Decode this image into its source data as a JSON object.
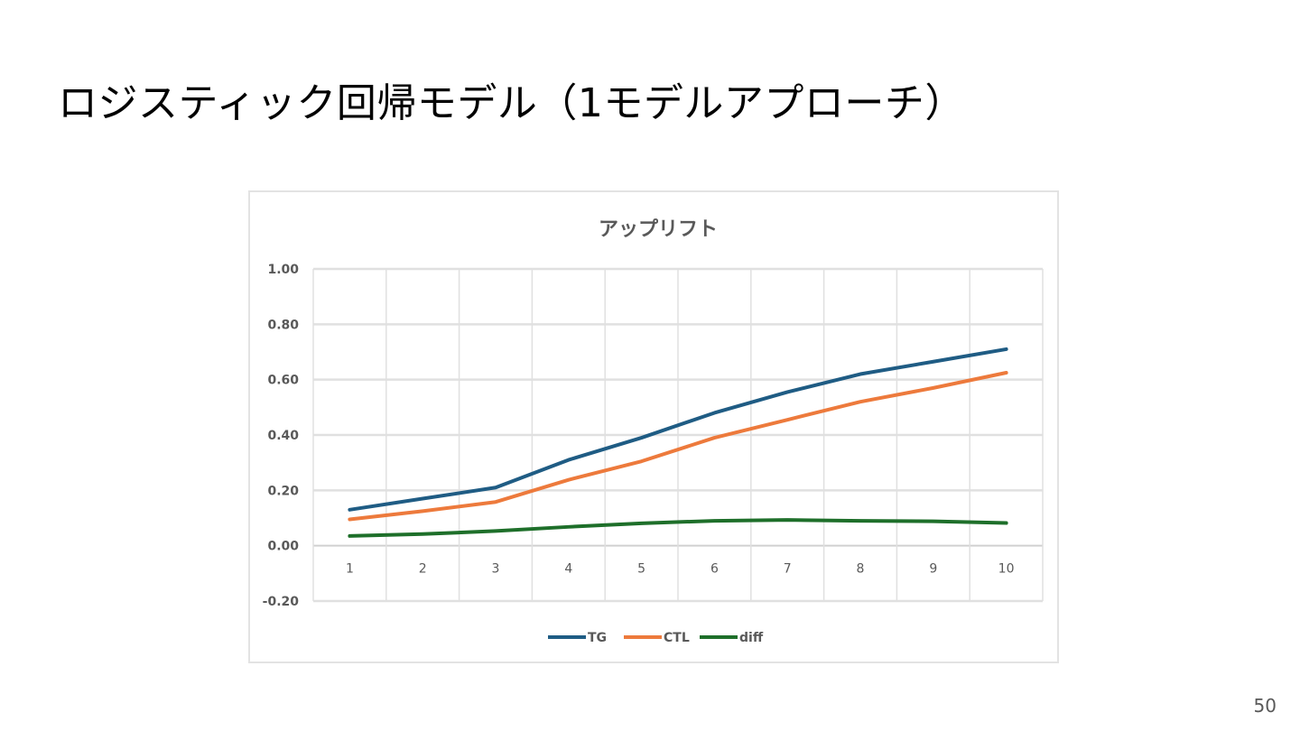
{
  "slide": {
    "title": "ロジスティック回帰モデル（1モデルアプローチ）",
    "page_number": "50"
  },
  "chart_data": {
    "type": "line",
    "title": "アップリフト",
    "xlabel": "",
    "ylabel": "",
    "categories": [
      "1",
      "2",
      "3",
      "4",
      "5",
      "6",
      "7",
      "8",
      "9",
      "10"
    ],
    "ylim": [
      -0.2,
      1.0
    ],
    "yticks": [
      "1.00",
      "0.80",
      "0.60",
      "0.40",
      "0.20",
      "0.00",
      "-0.20"
    ],
    "grid": true,
    "legend_position": "bottom",
    "series": [
      {
        "name": "TG",
        "color": "#1f5c84",
        "values": [
          0.13,
          0.17,
          0.21,
          0.31,
          0.39,
          0.48,
          0.555,
          0.62,
          0.665,
          0.71
        ]
      },
      {
        "name": "CTL",
        "color": "#ed7a3c",
        "values": [
          0.095,
          0.125,
          0.158,
          0.238,
          0.305,
          0.39,
          0.455,
          0.52,
          0.57,
          0.625
        ]
      },
      {
        "name": "diff",
        "color": "#1e6f2a",
        "values": [
          0.035,
          0.042,
          0.053,
          0.068,
          0.081,
          0.09,
          0.093,
          0.09,
          0.088,
          0.082
        ]
      }
    ]
  }
}
